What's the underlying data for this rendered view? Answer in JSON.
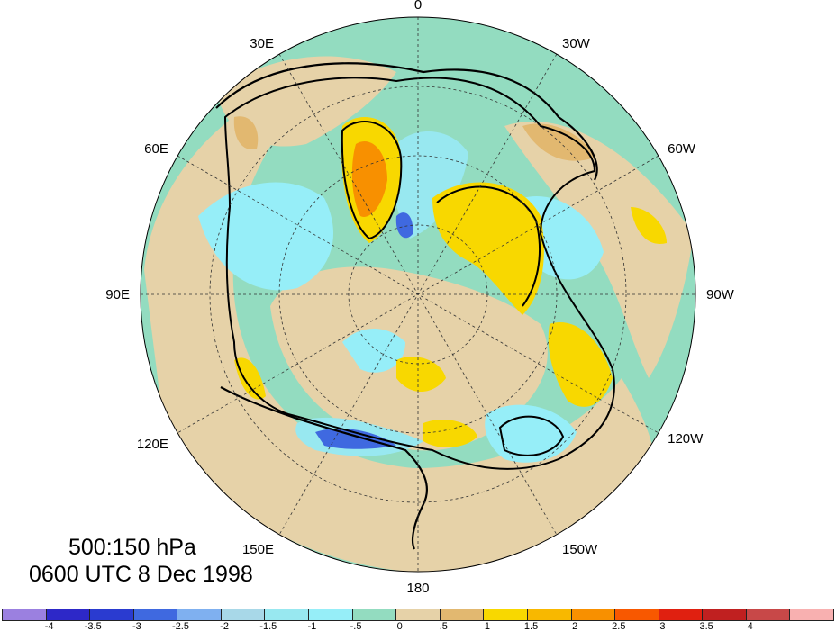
{
  "map": {
    "caption_levels": "500:150 hPa",
    "caption_time": "0600 UTC 8 Dec 1998",
    "longitude_labels": [
      {
        "text": "0",
        "bearing_deg": 0
      },
      {
        "text": "30W",
        "bearing_deg": 30
      },
      {
        "text": "60W",
        "bearing_deg": 60
      },
      {
        "text": "90W",
        "bearing_deg": 90
      },
      {
        "text": "120W",
        "bearing_deg": 120
      },
      {
        "text": "150W",
        "bearing_deg": 150
      },
      {
        "text": "180",
        "bearing_deg": 180
      },
      {
        "text": "150E",
        "bearing_deg": 210
      },
      {
        "text": "120E",
        "bearing_deg": 240
      },
      {
        "text": "90E",
        "bearing_deg": 270
      },
      {
        "text": "60E",
        "bearing_deg": 300
      },
      {
        "text": "30E",
        "bearing_deg": 330
      }
    ],
    "colors": {
      "ocean_background": "#93dcc0",
      "land_outline": "#222222",
      "contour": "#000000"
    }
  },
  "colorbar": {
    "colors": [
      "#9b80e0",
      "#2d28c8",
      "#2a3bd0",
      "#3f69e0",
      "#7fb0f0",
      "#a8d8e8",
      "#98e8f0",
      "#96eef8",
      "#93dcc0",
      "#e6d2a8",
      "#e2b870",
      "#f8d800",
      "#f8b800",
      "#f89000",
      "#f85800",
      "#e02010",
      "#c02020",
      "#c84848",
      "#f8b0b0"
    ],
    "labels": [
      "-4",
      "-3.5",
      "-3",
      "-2.5",
      "-2",
      "-1.5",
      "-1",
      "-.5",
      "0",
      ".5",
      "1",
      "1.5",
      "2",
      "2.5",
      "3",
      "3.5",
      "4"
    ]
  }
}
